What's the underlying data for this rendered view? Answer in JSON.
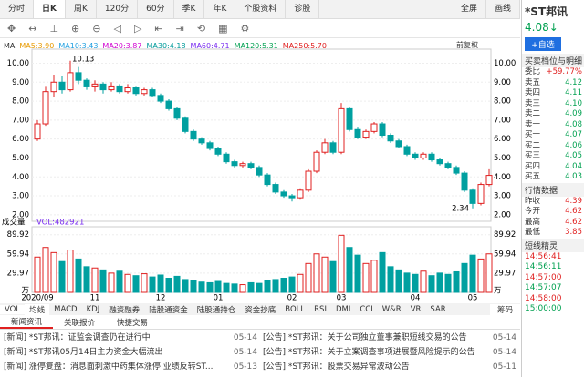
{
  "tabs": [
    "分时",
    "日K",
    "周K",
    "120分",
    "60分",
    "季K",
    "年K",
    "个股资料",
    "诊股"
  ],
  "tabs_right": [
    "全屏",
    "画线"
  ],
  "ma_title": "MA",
  "ma_items": [
    {
      "label": "MA5:3.90",
      "color": "#e89a00"
    },
    {
      "label": "MA10:3.43",
      "color": "#1f9fe0"
    },
    {
      "label": "MA20:3.87",
      "color": "#d000d0"
    },
    {
      "label": "MA30:4.18",
      "color": "#009a9a"
    },
    {
      "label": "MA60:4.71",
      "color": "#7a2ef0"
    },
    {
      "label": "MA120:5.31",
      "color": "#00a050"
    },
    {
      "label": "MA250:5.70",
      "color": "#e02020"
    }
  ],
  "adjust": "前复权",
  "chart_data": {
    "type": "candlestick",
    "x": [
      "2020/09",
      null,
      null,
      null,
      null,
      null,
      null,
      "11",
      null,
      null,
      null,
      null,
      null,
      null,
      null,
      "12",
      null,
      null,
      null,
      null,
      null,
      null,
      "01",
      null,
      null,
      null,
      null,
      null,
      null,
      null,
      null,
      "02",
      null,
      null,
      null,
      null,
      null,
      "03",
      null,
      null,
      null,
      null,
      null,
      null,
      null,
      null,
      "04",
      null,
      null,
      null,
      null,
      null,
      null,
      "05",
      null,
      null
    ],
    "open": [
      6.0,
      6.8,
      8.5,
      9.0,
      8.6,
      9.5,
      9.1,
      8.8,
      8.9,
      8.6,
      8.8,
      8.5,
      8.7,
      8.4,
      8.6,
      8.3,
      8.0,
      7.6,
      7.1,
      6.4,
      6.0,
      5.8,
      5.5,
      5.2,
      4.8,
      4.6,
      4.7,
      4.5,
      4.1,
      3.6,
      3.2,
      3.0,
      2.9,
      3.3,
      4.3,
      5.3,
      5.8,
      5.3,
      7.6,
      6.5,
      6.1,
      6.4,
      6.8,
      6.2,
      5.9,
      5.6,
      5.2,
      5.0,
      5.2,
      4.9,
      4.7,
      4.5,
      4.2,
      3.3,
      2.6,
      3.6
    ],
    "close": [
      6.8,
      8.5,
      9.0,
      8.6,
      9.5,
      9.1,
      8.8,
      8.9,
      8.6,
      8.8,
      8.5,
      8.7,
      8.4,
      8.6,
      8.3,
      8.0,
      7.6,
      7.1,
      6.4,
      6.0,
      5.8,
      5.5,
      5.2,
      4.8,
      4.6,
      4.7,
      4.5,
      4.1,
      3.6,
      3.2,
      3.0,
      2.9,
      3.3,
      4.3,
      5.3,
      5.8,
      5.3,
      7.6,
      6.5,
      6.1,
      6.4,
      6.8,
      6.2,
      5.9,
      5.6,
      5.2,
      5.0,
      5.2,
      4.9,
      4.7,
      4.5,
      4.2,
      3.3,
      2.6,
      3.6,
      4.08
    ],
    "high": [
      7.0,
      8.8,
      9.4,
      9.3,
      10.13,
      9.8,
      9.2,
      9.1,
      9.0,
      9.0,
      8.9,
      8.9,
      8.8,
      8.7,
      8.7,
      8.4,
      8.1,
      7.7,
      7.2,
      6.5,
      6.1,
      5.9,
      5.6,
      5.3,
      4.9,
      4.8,
      4.8,
      4.6,
      4.2,
      3.7,
      3.3,
      3.1,
      3.4,
      4.4,
      5.4,
      6.0,
      5.9,
      7.9,
      7.7,
      6.6,
      6.5,
      6.9,
      6.9,
      6.3,
      6.0,
      5.7,
      5.3,
      5.3,
      5.3,
      5.0,
      4.8,
      4.6,
      4.3,
      3.4,
      3.7,
      4.4
    ],
    "low": [
      5.9,
      6.7,
      8.2,
      8.4,
      8.5,
      8.9,
      8.6,
      8.5,
      8.4,
      8.5,
      8.4,
      8.4,
      8.3,
      8.3,
      8.2,
      7.9,
      7.5,
      7.0,
      6.3,
      5.9,
      5.7,
      5.4,
      5.1,
      4.7,
      4.5,
      4.5,
      4.4,
      4.0,
      3.5,
      3.1,
      2.9,
      2.7,
      2.8,
      3.2,
      4.2,
      5.2,
      5.2,
      5.2,
      6.4,
      6.0,
      6.0,
      6.3,
      6.1,
      5.8,
      5.5,
      5.1,
      4.9,
      4.9,
      4.8,
      4.6,
      4.4,
      4.1,
      3.2,
      2.34,
      2.5,
      3.5
    ],
    "volume": [
      55,
      70,
      62,
      48,
      66,
      52,
      40,
      38,
      35,
      30,
      33,
      28,
      26,
      29,
      24,
      27,
      22,
      25,
      20,
      18,
      16,
      15,
      17,
      14,
      13,
      12,
      15,
      14,
      18,
      20,
      22,
      24,
      28,
      45,
      60,
      55,
      48,
      89,
      70,
      58,
      45,
      50,
      62,
      40,
      35,
      30,
      28,
      33,
      26,
      30,
      28,
      32,
      45,
      58,
      52,
      60
    ],
    "ylim": [
      1.8,
      10.6
    ],
    "yticks": [
      {
        "value": 10,
        "label": "10.00"
      },
      {
        "value": 9,
        "label": "9.00"
      },
      {
        "value": 8,
        "label": "8.00"
      },
      {
        "value": 7,
        "label": "7.00"
      },
      {
        "value": 6,
        "label": "6.00"
      },
      {
        "value": 5,
        "label": "5.00"
      },
      {
        "value": 4,
        "label": "4.00"
      },
      {
        "value": 3,
        "label": "3.00"
      },
      {
        "value": 2,
        "label": "2.00"
      }
    ],
    "vlim": [
      0,
      98
    ],
    "vticks": [
      89.92,
      59.94,
      29.97
    ],
    "vunit": "万",
    "vol_title": "成交量",
    "vol_value": "VOL:482921",
    "high_note": "10.13",
    "low_note": "2.34",
    "up_color": "#e02020",
    "down_color": "#00a0a0"
  },
  "indicator_tabs": [
    "VOL",
    "均线",
    "MACD",
    "KDJ",
    "融资融券",
    "陆股通资金",
    "陆股通持仓",
    "资金抄底",
    "BOLL",
    "RSI",
    "DMI",
    "CCI",
    "W&R",
    "VR",
    "SAR"
  ],
  "indicator_right": "筹码",
  "news_tabs": [
    "新闻资讯",
    "关联报价",
    "快捷交易"
  ],
  "news_left": [
    {
      "text": "[新闻] *ST邦讯：证监会调查仍在进行中",
      "date": "05-14"
    },
    {
      "text": "[新闻] *ST邦讯05月14日主力资金大幅流出",
      "date": "05-14"
    },
    {
      "text": "[新闻] 涨停复盘：消息面刺激中药集体涨停 业绩反转ST...",
      "date": "05-13"
    }
  ],
  "news_right": [
    {
      "text": "[公告] *ST邦讯：关于公司独立董事兼职短线交易的公告",
      "date": "05-14"
    },
    {
      "text": "[公告] *ST邦讯：关于立案调查事项进展暨风险提示的公告",
      "date": "05-14"
    },
    {
      "text": "[公告] *ST邦讯：股票交易异常波动公告",
      "date": "05-11"
    }
  ],
  "side": {
    "name": "*ST邦讯",
    "price": "4.08↓",
    "add": "+自选",
    "book_title": "买卖档位与明细",
    "ratio_label": "委比",
    "ratio": "+59.77%",
    "book": [
      [
        "卖五",
        "4.12"
      ],
      [
        "卖四",
        "4.11"
      ],
      [
        "卖三",
        "4.10"
      ],
      [
        "卖二",
        "4.09"
      ],
      [
        "卖一",
        "4.08"
      ],
      [
        "买一",
        "4.07"
      ],
      [
        "买二",
        "4.06"
      ],
      [
        "买三",
        "4.05"
      ],
      [
        "买四",
        "4.04"
      ],
      [
        "买五",
        "4.03"
      ]
    ],
    "quote_title": "行情数据",
    "quote": [
      [
        "昨收",
        "4.39"
      ],
      [
        "今开",
        "4.62"
      ],
      [
        "最高",
        "4.62"
      ],
      [
        "最低",
        "3.85"
      ]
    ],
    "sprite_title": "短线精灵",
    "sprite": [
      "14:56:41",
      "14:56:11",
      "14:57:00",
      "14:57:07",
      "14:58:00",
      "15:00:00"
    ]
  }
}
